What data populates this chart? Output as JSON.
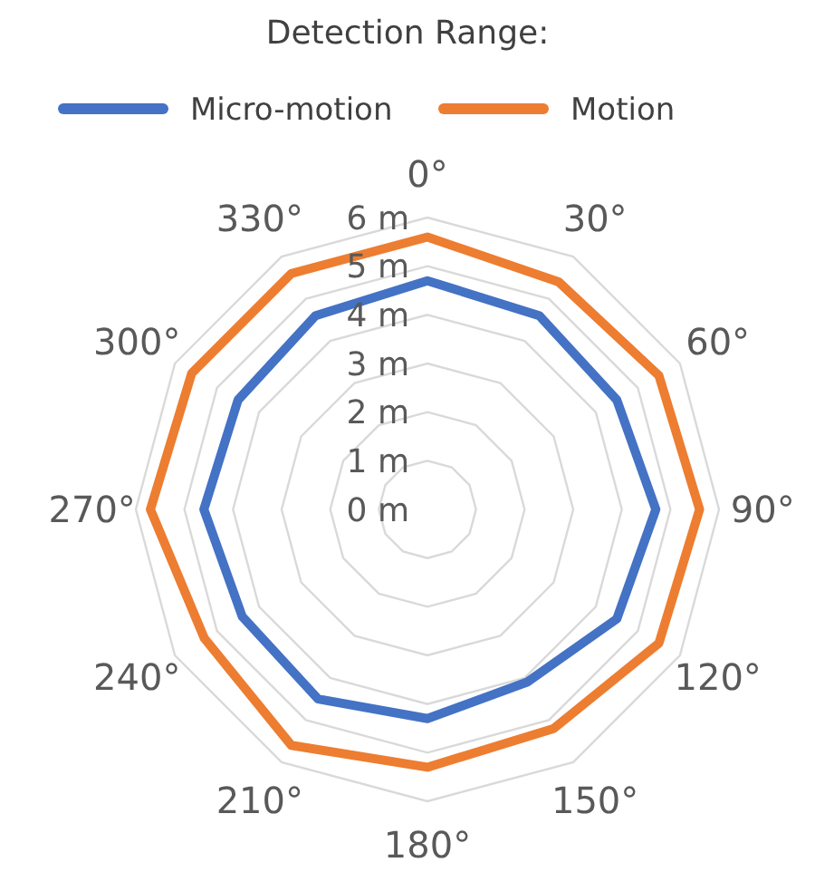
{
  "chart_data": {
    "type": "radar",
    "title": "Detection Range:",
    "categories": [
      "0°",
      "30°",
      "60°",
      "90°",
      "120°",
      "150°",
      "180°",
      "210°",
      "240°",
      "270°",
      "300°",
      "330°"
    ],
    "series": [
      {
        "name": "Micro-motion",
        "color": "#4472c4",
        "values": [
          4.7,
          4.6,
          4.5,
          4.7,
          4.5,
          4.1,
          4.3,
          4.5,
          4.4,
          4.6,
          4.5,
          4.6
        ]
      },
      {
        "name": "Motion",
        "color": "#ed7d31",
        "values": [
          5.6,
          5.4,
          5.5,
          5.6,
          5.5,
          5.2,
          5.3,
          5.6,
          5.3,
          5.7,
          5.6,
          5.6
        ]
      }
    ],
    "ylim": [
      0,
      6
    ],
    "yticks": [
      {
        "value": 0,
        "label": "0 m"
      },
      {
        "value": 1,
        "label": "1 m"
      },
      {
        "value": 2,
        "label": "2 m"
      },
      {
        "value": 3,
        "label": "3 m"
      },
      {
        "value": 4,
        "label": "4 m"
      },
      {
        "value": 5,
        "label": "5 m"
      },
      {
        "value": 6,
        "label": "6 m"
      }
    ],
    "grid": true,
    "legend": "top"
  }
}
